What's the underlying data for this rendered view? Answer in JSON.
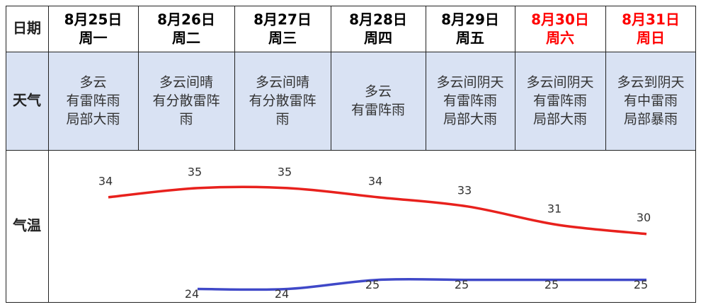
{
  "row_labels": [
    "日期",
    "天气",
    "气温"
  ],
  "days": [
    {
      "date": "8月25日",
      "weekday": "周一",
      "color": "#000000",
      "weather": [
        "多云",
        "有雷阵雨",
        "局部大雨"
      ]
    },
    {
      "date": "8月26日",
      "weekday": "周二",
      "color": "#000000",
      "weather": [
        "多云间晴",
        "有分散雷阵",
        "雨"
      ]
    },
    {
      "date": "8月27日",
      "weekday": "周三",
      "color": "#000000",
      "weather": [
        "多云间晴",
        "有分散雷阵",
        "雨"
      ]
    },
    {
      "date": "8月28日",
      "weekday": "周四",
      "color": "#000000",
      "weather": [
        "多云",
        "有雷阵雨"
      ]
    },
    {
      "date": "8月29日",
      "weekday": "周五",
      "color": "#000000",
      "weather": [
        "多云间阴天",
        "有雷阵雨",
        "局部大雨"
      ]
    },
    {
      "date": "8月30日",
      "weekday": "周六",
      "color": "#ff0000",
      "weather": [
        "多云间阴天",
        "有雷阵雨",
        "局部大雨"
      ]
    },
    {
      "date": "8月31日",
      "weekday": "周日",
      "color": "#ff0000",
      "weather": [
        "多云到阴天",
        "有中雷雨",
        "局部暴雨"
      ]
    }
  ],
  "chart_data": {
    "type": "line",
    "ylim": [
      22.5,
      39
    ],
    "series": [
      {
        "color": "#e8211d",
        "values": [
          34,
          35,
          35,
          34,
          33,
          31,
          30
        ]
      },
      {
        "color": "#3f48c8",
        "values": [
          null,
          24,
          24,
          25,
          25,
          25,
          25
        ]
      }
    ]
  }
}
